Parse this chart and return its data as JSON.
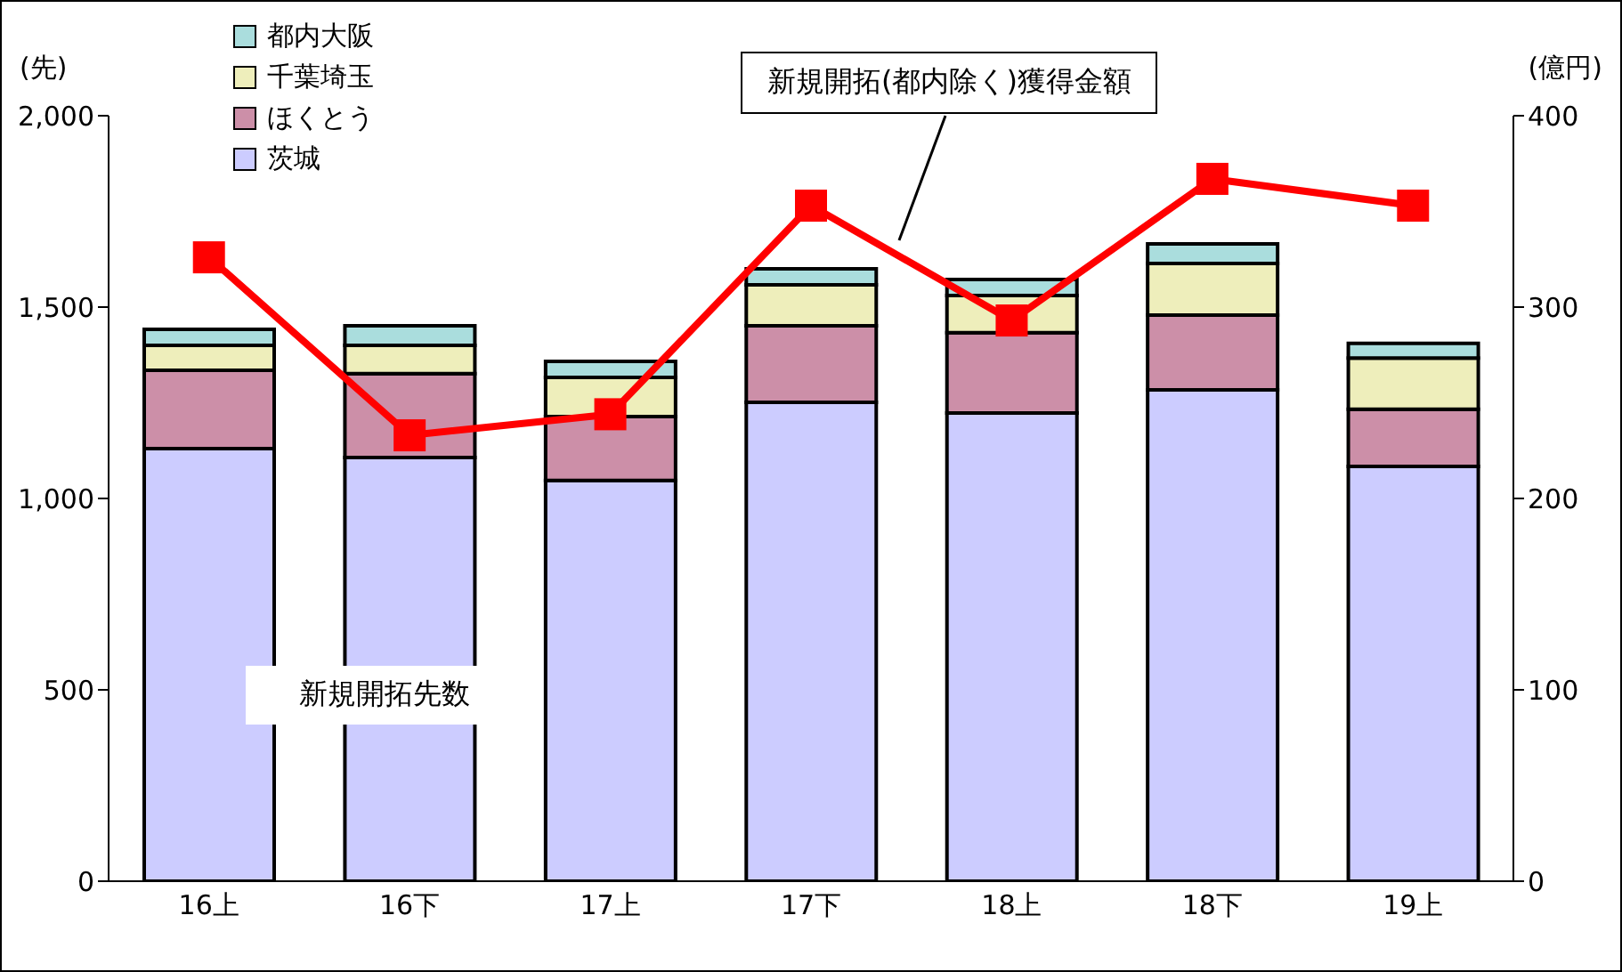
{
  "chart_data": {
    "type": "bar",
    "stacked": true,
    "ylabel": "(先)",
    "y2label": "(億円)",
    "categories": [
      "16上",
      "16下",
      "17上",
      "17下",
      "18上",
      "18下",
      "19上"
    ],
    "ylim": [
      0,
      2000
    ],
    "yticks": [
      {
        "value": 0,
        "label": "0"
      },
      {
        "value": 500,
        "label": "500"
      },
      {
        "value": 1000,
        "label": "1,000"
      },
      {
        "value": 1500,
        "label": "1,500"
      },
      {
        "value": 2000,
        "label": "2,000"
      }
    ],
    "y2lim": [
      0,
      400
    ],
    "y2ticks": [
      0,
      100,
      200,
      300,
      400
    ],
    "series": [
      {
        "name": "茨城",
        "color": "#ccccff",
        "values": [
          1130,
          1107,
          1047,
          1251,
          1223,
          1284,
          1084
        ]
      },
      {
        "name": "ほくとう",
        "color": "#cc8fa8",
        "values": [
          205,
          219,
          167,
          200,
          210,
          195,
          149
        ]
      },
      {
        "name": "千葉埼玉",
        "color": "#eeeebb",
        "values": [
          65,
          74,
          102,
          107,
          97,
          135,
          134
        ]
      },
      {
        "name": "都内大阪",
        "color": "#aadddd",
        "values": [
          42,
          51,
          42,
          42,
          42,
          51,
          38
        ]
      },
      {
        "name": "新規開拓(都内除く)獲得金額",
        "type": "line",
        "axis": "y2",
        "color": "#ff0000",
        "marker": "square",
        "values": [
          326,
          233,
          244,
          353,
          293,
          367,
          353
        ]
      }
    ],
    "annotations": [
      "新規開拓先数"
    ],
    "legend": "top left"
  }
}
